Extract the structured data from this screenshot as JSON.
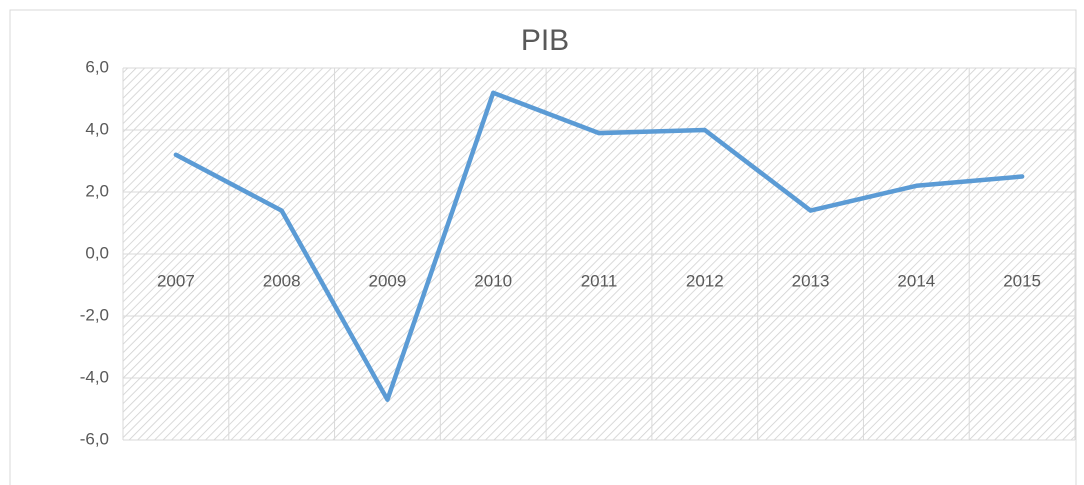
{
  "chart_data": {
    "type": "line",
    "title": "PIB",
    "categories": [
      "2007",
      "2008",
      "2009",
      "2010",
      "2011",
      "2012",
      "2013",
      "2014",
      "2015"
    ],
    "series": [
      {
        "name": "PIB",
        "color": "#5b9bd5",
        "values": [
          3.2,
          1.4,
          -4.7,
          5.2,
          3.9,
          4.0,
          1.4,
          2.2,
          2.5
        ]
      }
    ],
    "ylim": [
      -6,
      6
    ],
    "yticks": [
      {
        "value": -6,
        "label": "-6,0"
      },
      {
        "value": -4,
        "label": "-4,0"
      },
      {
        "value": -2,
        "label": "-2,0"
      },
      {
        "value": 0,
        "label": "0,0"
      },
      {
        "value": 2,
        "label": "2,0"
      },
      {
        "value": 4,
        "label": "4,0"
      },
      {
        "value": 6,
        "label": "6,0"
      }
    ],
    "grid": true
  }
}
